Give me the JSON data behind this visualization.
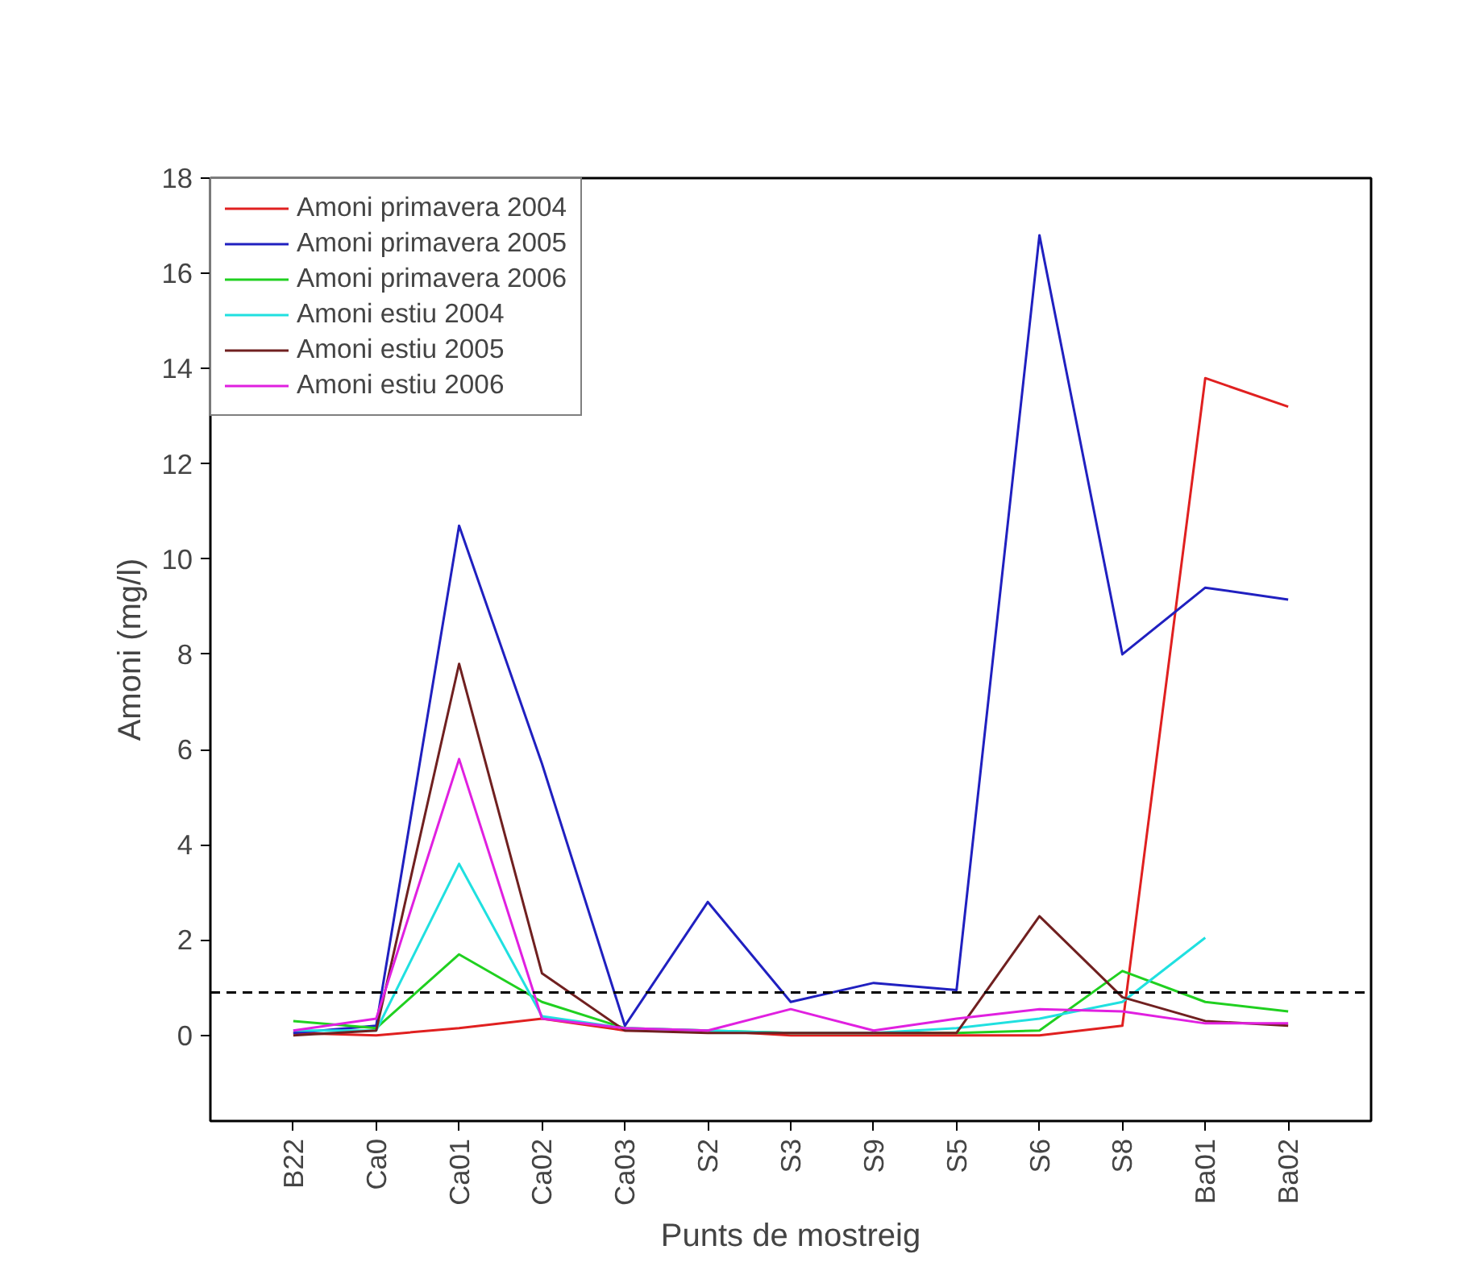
{
  "chart_data": {
    "type": "line",
    "xlabel": "Punts de mostreig",
    "ylabel": "Amoni (mg/l)",
    "categories": [
      "B22",
      "Ca0",
      "Ca01",
      "Ca02",
      "Ca03",
      "S2",
      "S3",
      "S9",
      "S5",
      "S6",
      "S8",
      "Ba01",
      "Ba02"
    ],
    "series": [
      {
        "name": "Amoni primavera 2004",
        "color": "#e02020",
        "values": [
          0.05,
          0.0,
          0.15,
          0.35,
          0.1,
          0.1,
          0.0,
          0.0,
          0.0,
          0.0,
          0.2,
          13.8,
          13.2
        ]
      },
      {
        "name": "Amoni primavera 2005",
        "color": "#2020c0",
        "values": [
          0.05,
          0.2,
          10.7,
          5.7,
          0.2,
          2.8,
          0.7,
          1.1,
          0.95,
          16.8,
          8.0,
          9.4,
          9.15
        ]
      },
      {
        "name": "Amoni primavera 2006",
        "color": "#20d020",
        "values": [
          0.3,
          0.15,
          1.7,
          0.7,
          0.15,
          0.1,
          0.05,
          0.05,
          0.05,
          0.1,
          1.35,
          0.7,
          0.5
        ]
      },
      {
        "name": "Amoni estiu 2004",
        "color": "#20e0e0",
        "values": [
          0.1,
          0.1,
          3.6,
          0.4,
          0.15,
          0.1,
          0.05,
          0.05,
          0.15,
          0.35,
          0.7,
          2.05,
          null
        ]
      },
      {
        "name": "Amoni estiu 2005",
        "color": "#702020",
        "values": [
          0.0,
          0.1,
          7.8,
          1.3,
          0.1,
          0.05,
          0.05,
          0.05,
          0.05,
          2.5,
          0.8,
          0.3,
          0.2
        ]
      },
      {
        "name": "Amoni estiu 2006",
        "color": "#e020e0",
        "values": [
          0.1,
          0.35,
          5.8,
          0.35,
          0.15,
          0.1,
          0.55,
          0.1,
          0.35,
          0.55,
          0.5,
          0.25,
          0.25
        ]
      }
    ],
    "ylim": [
      -1.8,
      18
    ],
    "yticks": [
      0,
      2,
      4,
      6,
      8,
      10,
      12,
      14,
      16,
      18
    ],
    "ref_lines": [
      {
        "axis": "y",
        "value": 0.9,
        "color": "#000000",
        "line_style": "dashed"
      }
    ],
    "grid": false,
    "legend": "top left",
    "marker": "none",
    "line_style": "solid"
  }
}
